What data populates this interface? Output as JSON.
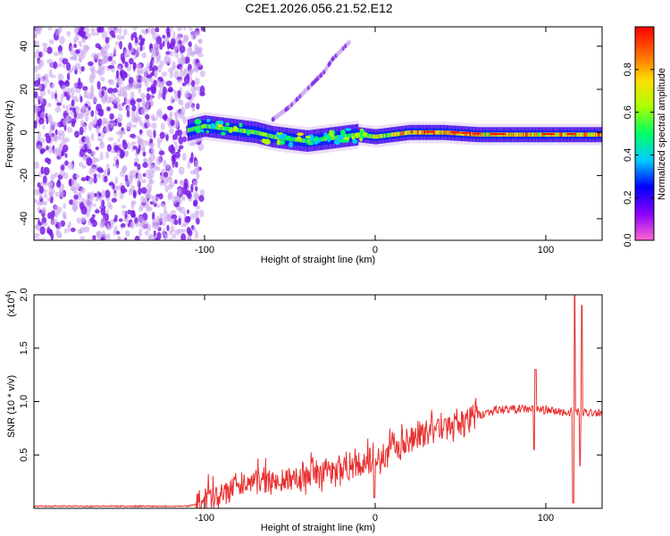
{
  "title": "C2E1.2026.056.21.52.E12",
  "chart_data": [
    {
      "type": "heatmap",
      "xlabel": "Height of straight line (km)",
      "ylabel": "Frequency (Hz)",
      "xlim": [
        -200,
        133
      ],
      "ylim": [
        -50,
        49
      ],
      "xticks": [
        "-100",
        "0",
        "100"
      ],
      "yticks": [
        "-40",
        "-20",
        "0",
        "20",
        "40"
      ],
      "colorbar": {
        "label": "Normalized spectral amplitude",
        "ticks": [
          "0.0",
          "0.2",
          "0.4",
          "0.6",
          "0.8"
        ],
        "range": [
          0,
          1
        ],
        "colormap": [
          "#ff66cc",
          "#8800ff",
          "#0000ff",
          "#00ccff",
          "#00ff66",
          "#aaff00",
          "#ffdd00",
          "#ff6600",
          "#ff0000"
        ]
      },
      "noise_region_x": [
        -200,
        -105
      ],
      "ridge": {
        "x": [
          -110,
          -100,
          -90,
          -80,
          -70,
          -60,
          -50,
          -40,
          -30,
          -20,
          -10,
          0,
          10,
          20,
          40,
          60,
          80,
          100,
          115,
          133
        ],
        "freq": [
          1,
          3,
          2,
          1,
          0,
          -2,
          -3,
          -4,
          -3,
          -2,
          -1,
          -2,
          -1,
          0,
          0,
          -1,
          -1,
          -1,
          -1,
          -1
        ]
      },
      "upper_trace": {
        "x": [
          -60,
          -50,
          -40,
          -35,
          -30,
          -25,
          -20,
          -15
        ],
        "freq": [
          6,
          12,
          20,
          24,
          28,
          34,
          38,
          42
        ]
      }
    },
    {
      "type": "line",
      "xlabel": "Height of straight line (km)",
      "ylabel": "SNR (10 * v/v)",
      "scale_label": "(x10",
      "scale_exp": "4",
      "scale_close": ")",
      "xlim": [
        -200,
        133
      ],
      "ylim": [
        0,
        2.0
      ],
      "xticks": [
        "-100",
        "0",
        "100"
      ],
      "yticks": [
        "0.5",
        "1.0",
        "1.5",
        "2.0"
      ],
      "color": "#e8302f",
      "trend": {
        "x": [
          -200,
          -110,
          -100,
          -90,
          -80,
          -60,
          -40,
          -20,
          -10,
          0,
          10,
          20,
          30,
          40,
          50,
          60,
          70,
          80,
          90,
          100,
          110,
          133
        ],
        "y": [
          0.02,
          0.02,
          0.06,
          0.15,
          0.2,
          0.25,
          0.3,
          0.35,
          0.4,
          0.45,
          0.52,
          0.6,
          0.7,
          0.75,
          0.8,
          0.87,
          0.92,
          0.93,
          0.93,
          0.92,
          0.9,
          0.9
        ]
      },
      "spikes": [
        {
          "x": -0.5,
          "y": 0.1
        },
        {
          "x": 94,
          "y": 1.3
        },
        {
          "x": 93,
          "y": 0.55
        },
        {
          "x": 117,
          "y": 2.0
        },
        {
          "x": 116,
          "y": 0.05
        },
        {
          "x": 121,
          "y": 1.9
        },
        {
          "x": 120,
          "y": 0.4
        }
      ]
    }
  ]
}
